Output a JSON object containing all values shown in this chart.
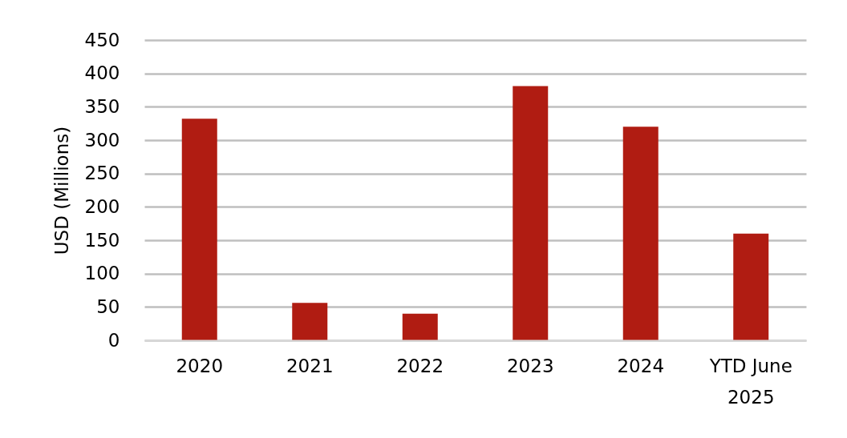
{
  "chart_data": {
    "type": "bar",
    "ylabel": "USD (Millions)",
    "categories": [
      "2020",
      "2021",
      "2022",
      "2023",
      "2024",
      "YTD June 2025"
    ],
    "values": [
      332,
      56,
      40,
      381,
      320,
      160
    ],
    "color": "#b01c12",
    "ylim": [
      0,
      450
    ],
    "yticks": [
      0,
      50,
      100,
      150,
      200,
      250,
      300,
      350,
      400,
      450
    ],
    "grid": "y"
  }
}
